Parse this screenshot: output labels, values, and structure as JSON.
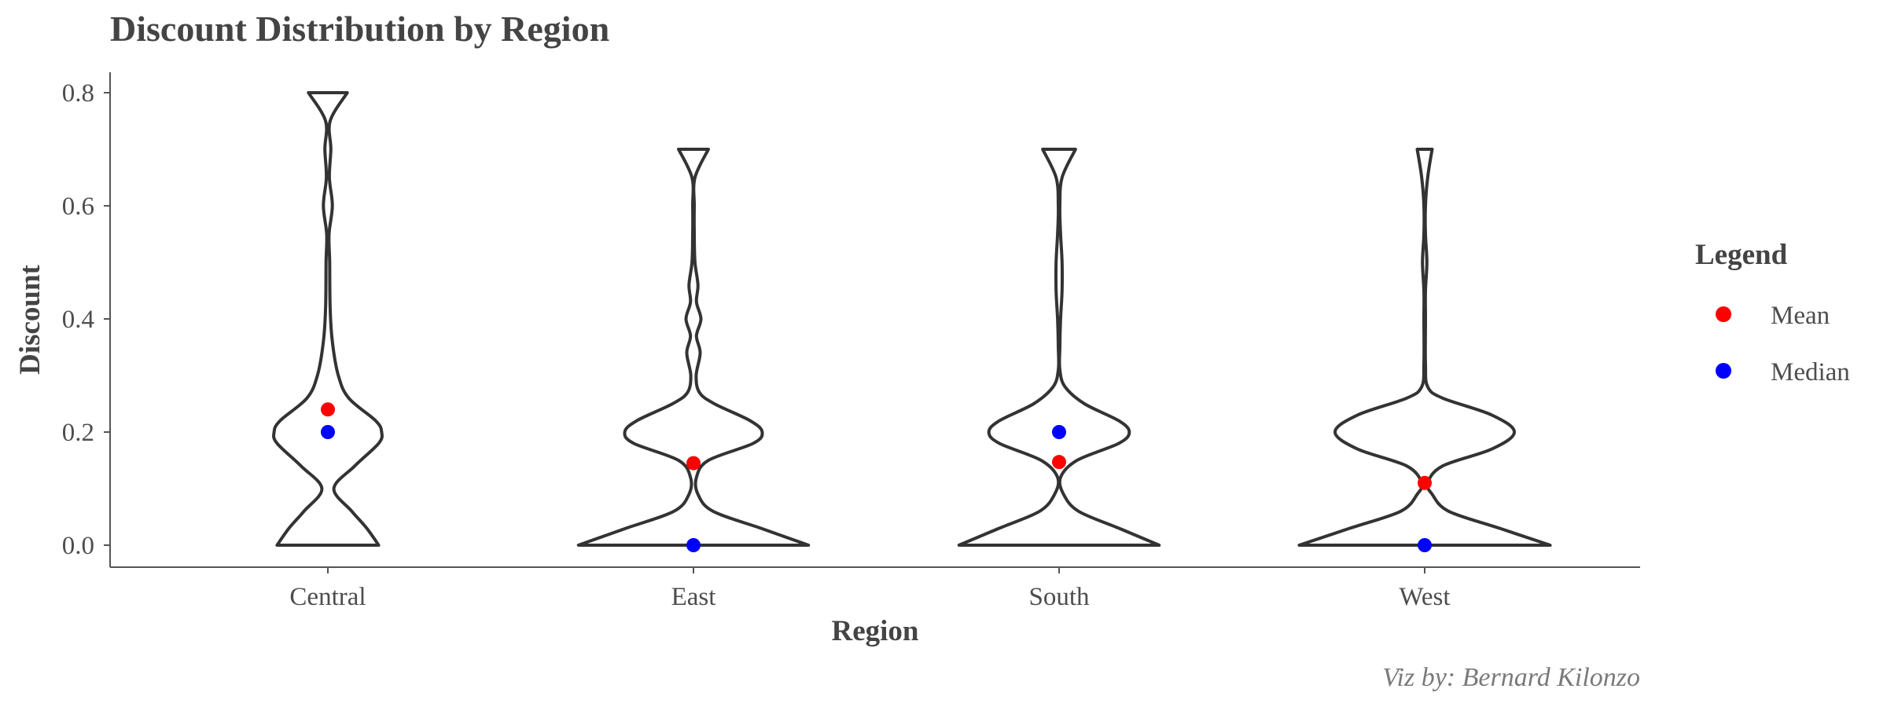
{
  "chart_data": {
    "type": "violin",
    "title": "Discount Distribution by Region",
    "xlabel": "Region",
    "ylabel": "Discount",
    "categories": [
      "Central",
      "East",
      "South",
      "West"
    ],
    "ylim": [
      0,
      0.8
    ],
    "yticks": [
      "0.0",
      "0.2",
      "0.4",
      "0.6",
      "0.8"
    ],
    "ytick_values": [
      0,
      0.2,
      0.4,
      0.6,
      0.8
    ],
    "legend": {
      "title": "Legend",
      "position": "right",
      "items": [
        {
          "label": "Mean",
          "color": "#ff0000"
        },
        {
          "label": "Median",
          "color": "#0000ff"
        }
      ]
    },
    "caption": "Viz by: Bernard Kilonzo",
    "series": [
      {
        "name": "Mean",
        "values": [
          0.24,
          0.145,
          0.147,
          0.11
        ]
      },
      {
        "name": "Median",
        "values": [
          0.2,
          0.0,
          0.2,
          0.0
        ]
      }
    ],
    "violins": [
      {
        "region": "Central",
        "range": [
          0,
          0.8
        ],
        "density_profile": [
          [
            0,
            0.34
          ],
          [
            0.03,
            0.26
          ],
          [
            0.06,
            0.16
          ],
          [
            0.1,
            0.04
          ],
          [
            0.14,
            0.18
          ],
          [
            0.18,
            0.34
          ],
          [
            0.2,
            0.36
          ],
          [
            0.22,
            0.32
          ],
          [
            0.26,
            0.14
          ],
          [
            0.3,
            0.07
          ],
          [
            0.36,
            0.03
          ],
          [
            0.42,
            0.015
          ],
          [
            0.5,
            0.012
          ],
          [
            0.55,
            0.008
          ],
          [
            0.6,
            0.03
          ],
          [
            0.65,
            0.01
          ],
          [
            0.7,
            0.02
          ],
          [
            0.75,
            0.015
          ],
          [
            0.8,
            0.13
          ]
        ]
      },
      {
        "region": "East",
        "range": [
          0,
          0.7
        ],
        "density_profile": [
          [
            0,
            0.77
          ],
          [
            0.03,
            0.45
          ],
          [
            0.06,
            0.13
          ],
          [
            0.09,
            0.03
          ],
          [
            0.12,
            0.02
          ],
          [
            0.15,
            0.1
          ],
          [
            0.18,
            0.4
          ],
          [
            0.2,
            0.46
          ],
          [
            0.22,
            0.38
          ],
          [
            0.25,
            0.14
          ],
          [
            0.27,
            0.04
          ],
          [
            0.3,
            0.018
          ],
          [
            0.34,
            0.045
          ],
          [
            0.37,
            0.02
          ],
          [
            0.4,
            0.05
          ],
          [
            0.43,
            0.02
          ],
          [
            0.46,
            0.03
          ],
          [
            0.5,
            0.01
          ],
          [
            0.55,
            0.005
          ],
          [
            0.6,
            0.005
          ],
          [
            0.65,
            0.01
          ],
          [
            0.7,
            0.1
          ]
        ]
      },
      {
        "region": "South",
        "range": [
          0,
          0.7
        ],
        "density_profile": [
          [
            0,
            0.67
          ],
          [
            0.03,
            0.4
          ],
          [
            0.06,
            0.13
          ],
          [
            0.09,
            0.03
          ],
          [
            0.12,
            0.01
          ],
          [
            0.15,
            0.12
          ],
          [
            0.18,
            0.4
          ],
          [
            0.2,
            0.47
          ],
          [
            0.22,
            0.4
          ],
          [
            0.25,
            0.17
          ],
          [
            0.28,
            0.04
          ],
          [
            0.31,
            0.005
          ],
          [
            0.35,
            0.005
          ],
          [
            0.4,
            0.01
          ],
          [
            0.45,
            0.02
          ],
          [
            0.5,
            0.02
          ],
          [
            0.55,
            0.01
          ],
          [
            0.6,
            0.005
          ],
          [
            0.65,
            0.02
          ],
          [
            0.7,
            0.11
          ]
        ]
      },
      {
        "region": "West",
        "range": [
          0,
          0.7
        ],
        "density_profile": [
          [
            0,
            0.84
          ],
          [
            0.03,
            0.5
          ],
          [
            0.06,
            0.16
          ],
          [
            0.09,
            0.05
          ],
          [
            0.11,
            0.02
          ],
          [
            0.14,
            0.12
          ],
          [
            0.17,
            0.45
          ],
          [
            0.2,
            0.6
          ],
          [
            0.23,
            0.45
          ],
          [
            0.26,
            0.12
          ],
          [
            0.28,
            0.02
          ],
          [
            0.32,
            0.005
          ],
          [
            0.4,
            0.005
          ],
          [
            0.45,
            0.005
          ],
          [
            0.5,
            0.015
          ],
          [
            0.55,
            0.005
          ],
          [
            0.6,
            0.005
          ],
          [
            0.65,
            0.02
          ],
          [
            0.7,
            0.05
          ]
        ]
      }
    ]
  }
}
